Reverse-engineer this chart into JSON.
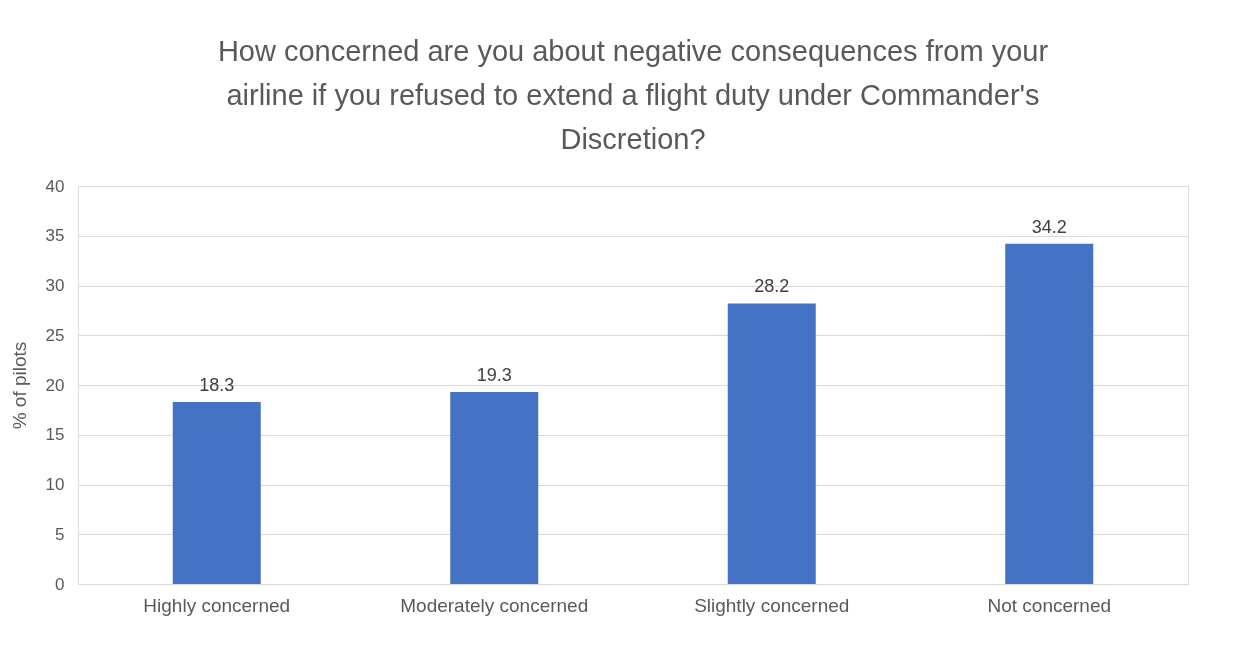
{
  "chart_data": {
    "type": "bar",
    "title": "How concerned are you about negative consequences from your airline if you refused to extend a flight duty under Commander's Discretion?",
    "ylabel": "% of pilots",
    "categories": [
      "Highly concerned",
      "Moderately concerned",
      "Slightly concerned",
      "Not concerned"
    ],
    "values": [
      18.3,
      19.3,
      28.2,
      34.2
    ],
    "color": "#4472c4",
    "ylim": [
      0,
      40
    ],
    "yticks": [
      0,
      5,
      10,
      15,
      20,
      25,
      30,
      35,
      40
    ],
    "grid": "y",
    "data_labels": true
  }
}
